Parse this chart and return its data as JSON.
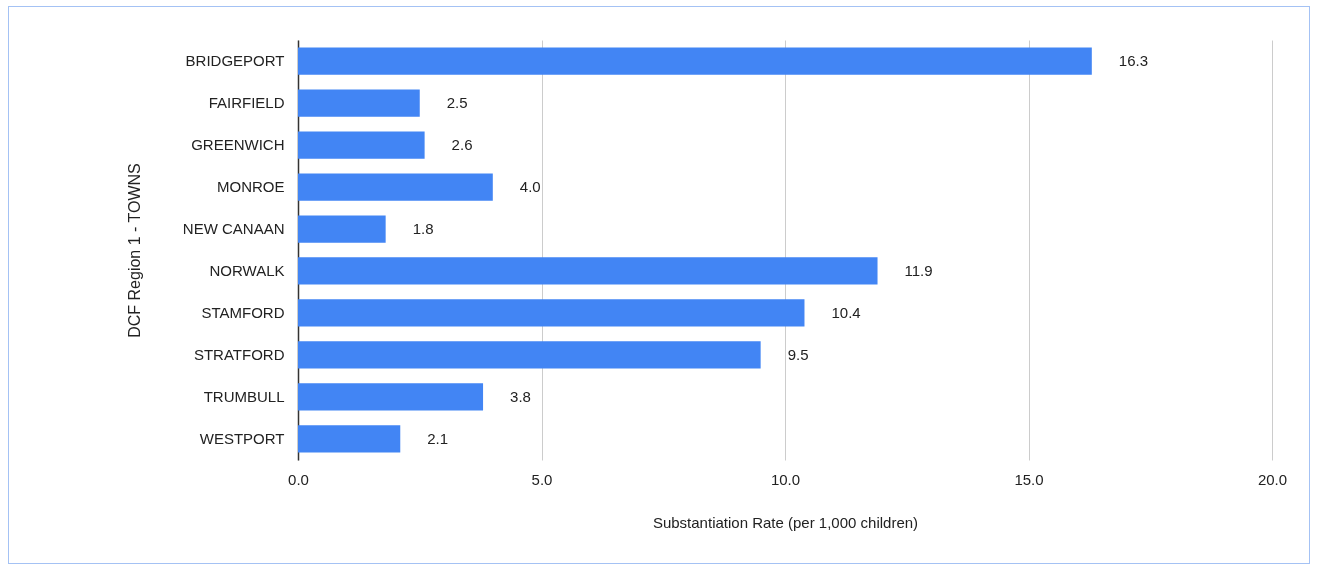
{
  "chart_data": {
    "type": "bar",
    "orientation": "horizontal",
    "xlabel": "Substantiation Rate (per 1,000 children)",
    "ylabel": "DCF Region 1 - TOWNS",
    "categories": [
      "BRIDGEPORT",
      "FAIRFIELD",
      "GREENWICH",
      "MONROE",
      "NEW CANAAN",
      "NORWALK",
      "STAMFORD",
      "STRATFORD",
      "TRUMBULL",
      "WESTPORT"
    ],
    "values": [
      16.3,
      2.5,
      2.6,
      4.0,
      1.8,
      11.9,
      10.4,
      9.5,
      3.8,
      2.1
    ],
    "value_labels": [
      "16.3",
      "2.5",
      "2.6",
      "4.0",
      "1.8",
      "11.9",
      "10.4",
      "9.5",
      "3.8",
      "2.1"
    ],
    "color": "#4285f4",
    "xlim": [
      0,
      20
    ],
    "xticks": [
      {
        "value": 0,
        "label": "0.0"
      },
      {
        "value": 5,
        "label": "5.0"
      },
      {
        "value": 10,
        "label": "10.0"
      },
      {
        "value": 15,
        "label": "15.0"
      },
      {
        "value": 20,
        "label": "20.0"
      }
    ],
    "grid": "x"
  }
}
